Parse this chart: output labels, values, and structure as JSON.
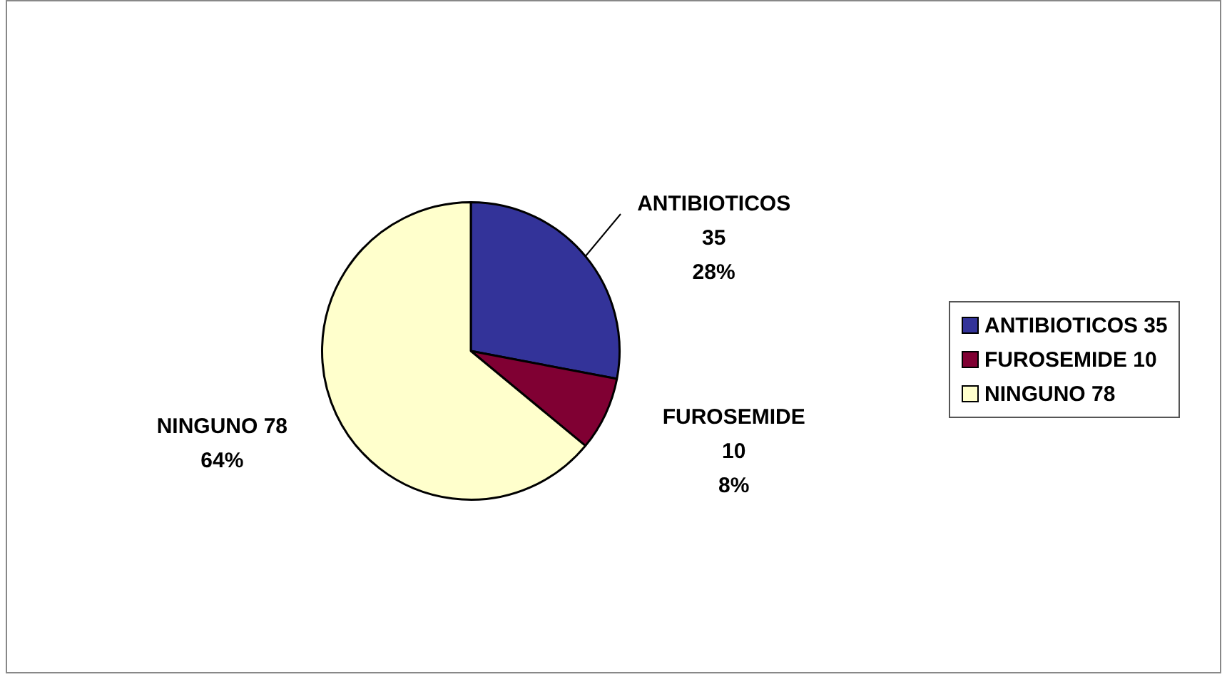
{
  "chart_data": {
    "type": "pie",
    "categories": [
      "ANTIBIOTICOS 35",
      "FUROSEMIDE 10",
      "NINGUNO 78"
    ],
    "values": [
      28,
      8,
      64
    ],
    "colors": [
      "#333399",
      "#800033",
      "#ffffcc"
    ],
    "value_labels": [
      "28%",
      "8%",
      "64%"
    ],
    "legend": "right"
  }
}
